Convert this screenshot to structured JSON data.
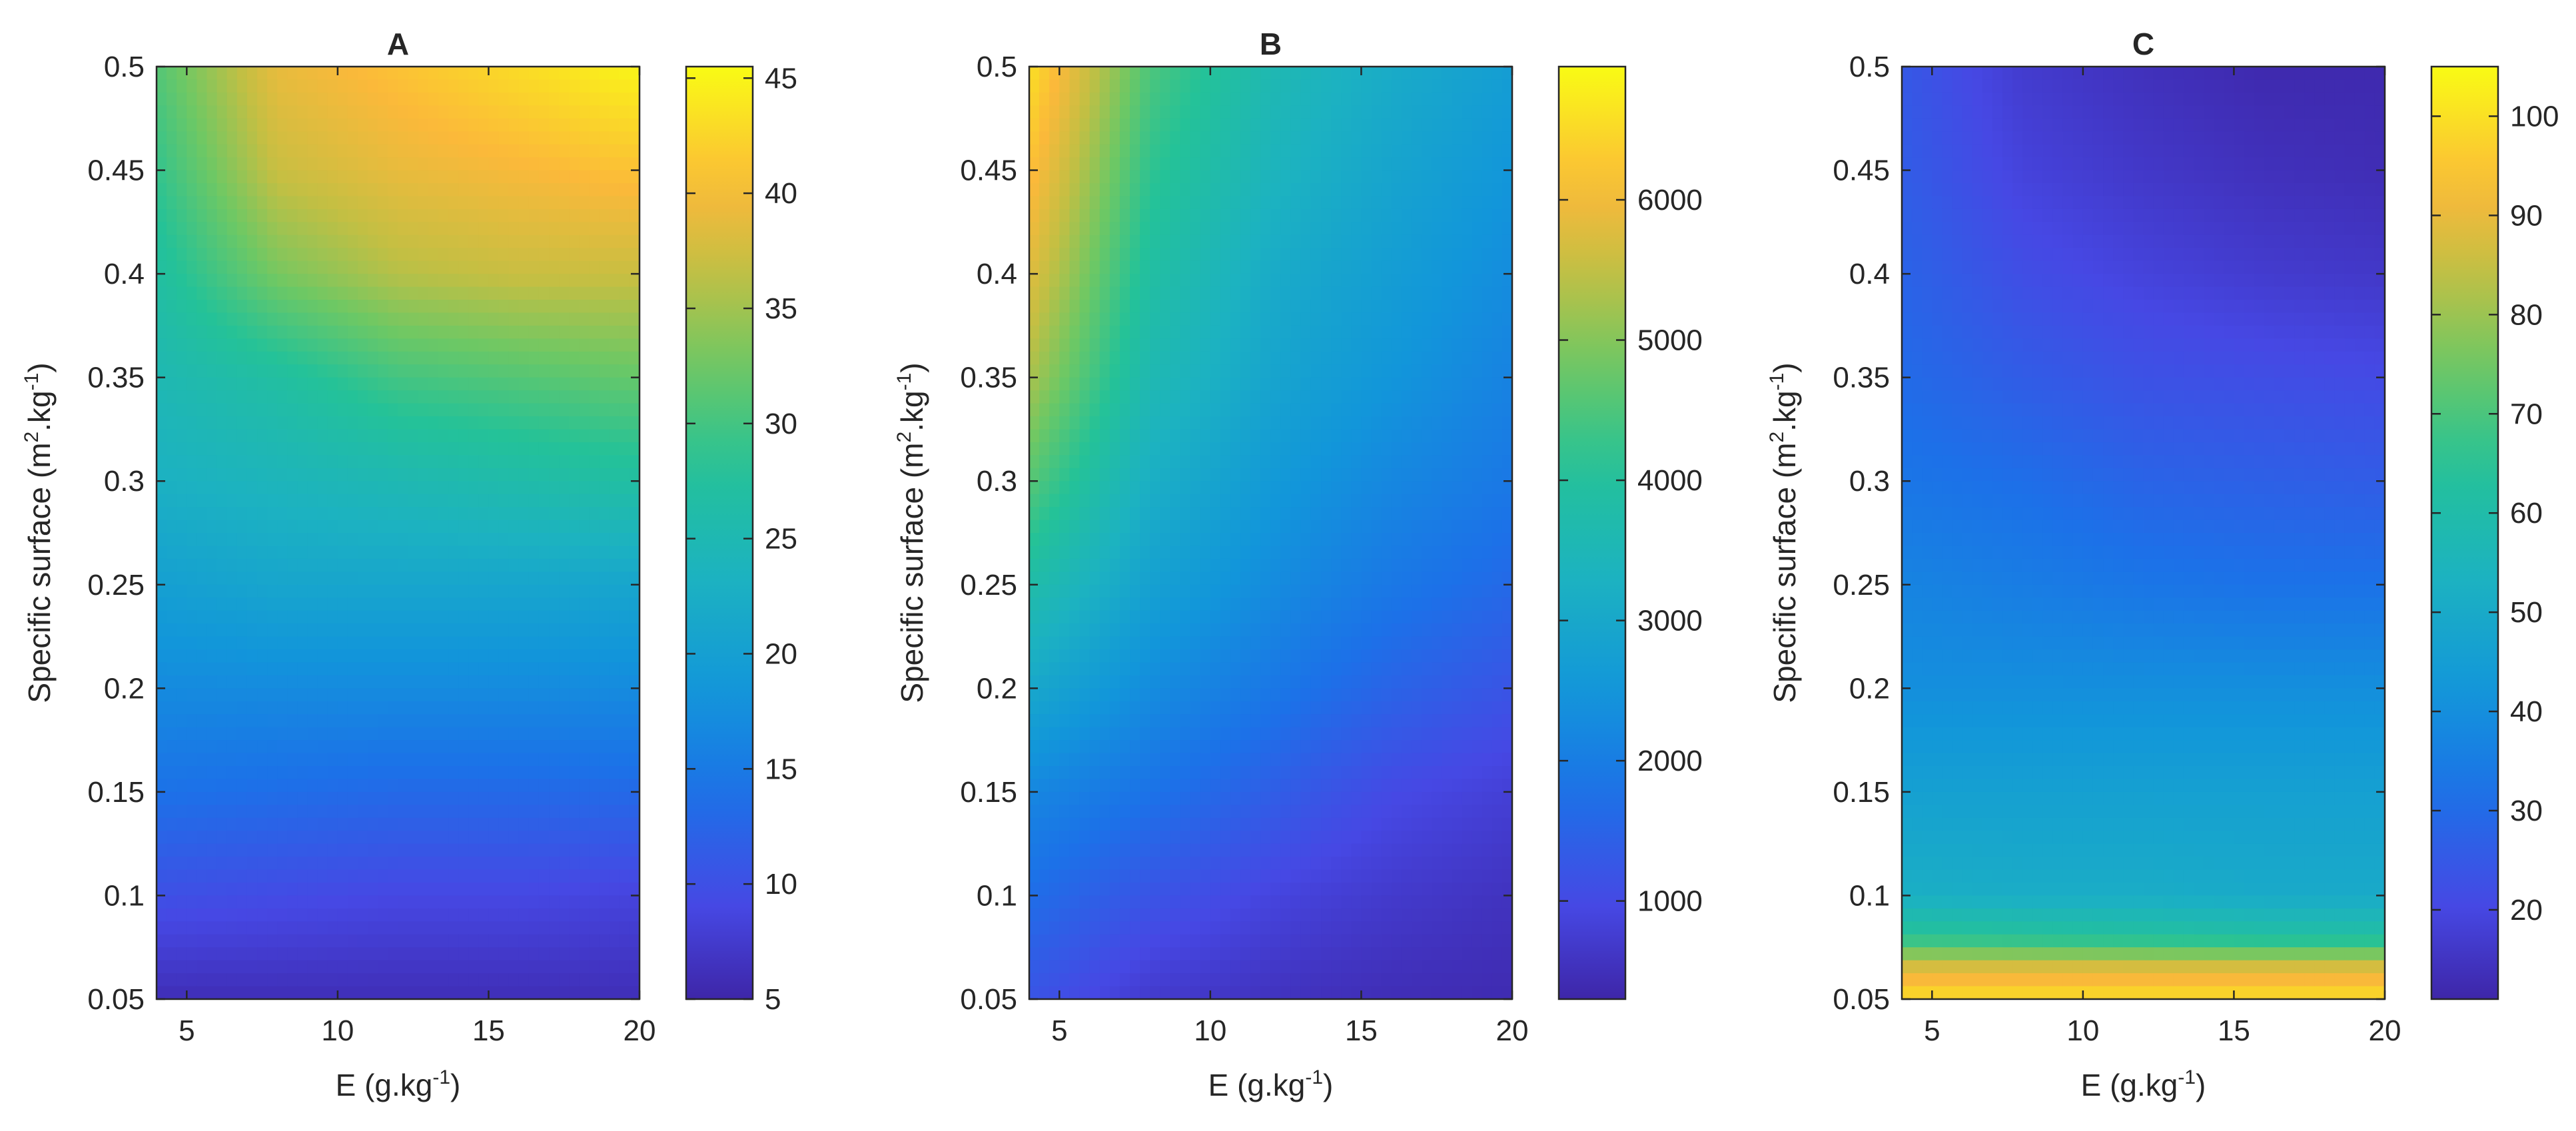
{
  "chart_data": [
    {
      "type": "heatmap",
      "title": "A",
      "xlabel": "E (g.kg",
      "xlabel_sup": "-1",
      "xlabel_end": ")",
      "ylabel_pre": "Specific surface (m",
      "ylabel_sup1": "2",
      "ylabel_mid": ".kg",
      "ylabel_sup2": "-1",
      "ylabel_end": ")",
      "xlim": [
        4,
        20
      ],
      "ylim": [
        0.05,
        0.5
      ],
      "x_ticks": [
        5,
        10,
        15,
        20
      ],
      "x_tick_labels": [
        "5",
        "10",
        "15",
        "20"
      ],
      "y_ticks": [
        0.05,
        0.1,
        0.15,
        0.2,
        0.25,
        0.3,
        0.35,
        0.4,
        0.45,
        0.5
      ],
      "y_tick_labels": [
        "0.05",
        "0.1",
        "0.15",
        "0.2",
        "0.25",
        "0.3",
        "0.35",
        "0.4",
        "0.45",
        "0.5"
      ],
      "colorbar": {
        "range": [
          5,
          45.5
        ],
        "ticks": [
          5,
          10,
          15,
          20,
          25,
          30,
          35,
          40,
          45
        ],
        "tick_labels": [
          "5",
          "10",
          "15",
          "20",
          "25",
          "30",
          "35",
          "40",
          "45"
        ],
        "colormap": "parula"
      },
      "surface": {
        "x": [
          4,
          8,
          12,
          16,
          20
        ],
        "y": [
          0.05,
          0.1,
          0.15,
          0.2,
          0.25,
          0.3,
          0.35,
          0.4,
          0.45,
          0.5
        ],
        "z": [
          [
            6,
            6,
            6,
            6,
            6
          ],
          [
            10,
            9.5,
            9,
            9,
            8.5
          ],
          [
            14,
            13.5,
            13,
            13,
            13
          ],
          [
            17,
            17,
            17,
            17,
            17
          ],
          [
            20,
            21,
            21,
            21,
            21
          ],
          [
            23,
            24,
            25,
            26,
            27
          ],
          [
            25,
            27,
            30,
            31,
            32
          ],
          [
            27,
            33,
            36,
            37,
            37
          ],
          [
            29,
            37,
            39,
            40,
            41
          ],
          [
            31,
            39,
            41,
            43,
            45
          ]
        ]
      }
    },
    {
      "type": "heatmap",
      "title": "B",
      "xlabel": "E (g.kg",
      "xlabel_sup": "-1",
      "xlabel_end": ")",
      "ylabel_pre": "Specific surface (m",
      "ylabel_sup1": "2",
      "ylabel_mid": ".kg",
      "ylabel_sup2": "-1",
      "ylabel_end": ")",
      "xlim": [
        4,
        20
      ],
      "ylim": [
        0.05,
        0.5
      ],
      "x_ticks": [
        5,
        10,
        15,
        20
      ],
      "x_tick_labels": [
        "5",
        "10",
        "15",
        "20"
      ],
      "y_ticks": [
        0.05,
        0.1,
        0.15,
        0.2,
        0.25,
        0.3,
        0.35,
        0.4,
        0.45,
        0.5
      ],
      "y_tick_labels": [
        "0.05",
        "0.1",
        "0.15",
        "0.2",
        "0.25",
        "0.3",
        "0.35",
        "0.4",
        "0.45",
        "0.5"
      ],
      "colorbar": {
        "range": [
          300,
          6950
        ],
        "ticks": [
          1000,
          2000,
          3000,
          4000,
          5000,
          6000
        ],
        "tick_labels": [
          "1000",
          "2000",
          "3000",
          "4000",
          "5000",
          "6000"
        ],
        "colormap": "parula"
      },
      "surface": {
        "x": [
          4,
          8,
          12,
          16,
          20
        ],
        "y": [
          0.05,
          0.1,
          0.15,
          0.2,
          0.25,
          0.3,
          0.35,
          0.4,
          0.45,
          0.5
        ],
        "z": [
          [
            1200,
            700,
            550,
            450,
            400
          ],
          [
            1700,
            1200,
            900,
            700,
            550
          ],
          [
            2200,
            1800,
            1400,
            1000,
            800
          ],
          [
            3000,
            2300,
            1900,
            1500,
            1200
          ],
          [
            3800,
            2800,
            2300,
            1900,
            1600
          ],
          [
            4600,
            3200,
            2600,
            2200,
            1900
          ],
          [
            5300,
            3600,
            2900,
            2500,
            2100
          ],
          [
            5800,
            3900,
            3100,
            2700,
            2300
          ],
          [
            6200,
            4200,
            3400,
            2900,
            2500
          ],
          [
            6600,
            4500,
            3600,
            3100,
            2700
          ]
        ]
      }
    },
    {
      "type": "heatmap",
      "title": "C",
      "xlabel": "E (g.kg",
      "xlabel_sup": "-1",
      "xlabel_end": ")",
      "ylabel_pre": "Specific surface (m",
      "ylabel_sup1": "2",
      "ylabel_mid": ".kg",
      "ylabel_sup2": "-1",
      "ylabel_end": ")",
      "xlim": [
        4,
        20
      ],
      "ylim": [
        0.05,
        0.5
      ],
      "x_ticks": [
        5,
        10,
        15,
        20
      ],
      "x_tick_labels": [
        "5",
        "10",
        "15",
        "20"
      ],
      "y_ticks": [
        0.05,
        0.1,
        0.15,
        0.2,
        0.25,
        0.3,
        0.35,
        0.4,
        0.45,
        0.5
      ],
      "y_tick_labels": [
        "0.05",
        "0.1",
        "0.15",
        "0.2",
        "0.25",
        "0.3",
        "0.35",
        "0.4",
        "0.45",
        "0.5"
      ],
      "colorbar": {
        "range": [
          11,
          105
        ],
        "ticks": [
          20,
          30,
          40,
          50,
          60,
          70,
          80,
          90,
          100
        ],
        "tick_labels": [
          "20",
          "30",
          "40",
          "50",
          "60",
          "70",
          "80",
          "90",
          "100"
        ],
        "colormap": "parula"
      },
      "surface": {
        "x": [
          4,
          8,
          12,
          16,
          20
        ],
        "y": [
          0.05,
          0.065,
          0.08,
          0.1,
          0.15,
          0.2,
          0.25,
          0.3,
          0.35,
          0.4,
          0.45,
          0.5
        ],
        "z": [
          [
            100,
            100,
            100,
            100,
            100
          ],
          [
            88,
            88,
            88,
            88,
            88
          ],
          [
            65,
            64,
            63,
            62,
            62
          ],
          [
            52,
            51,
            51,
            50,
            50
          ],
          [
            46,
            46,
            46,
            46,
            46
          ],
          [
            40,
            40,
            40,
            40,
            40
          ],
          [
            37,
            35,
            33,
            32,
            32
          ],
          [
            33,
            31,
            28,
            27,
            26
          ],
          [
            30,
            26,
            23,
            22,
            21
          ],
          [
            28,
            22,
            19,
            17,
            16
          ],
          [
            26,
            19,
            16,
            14,
            13
          ],
          [
            25,
            17,
            14,
            12,
            12
          ]
        ]
      }
    }
  ]
}
